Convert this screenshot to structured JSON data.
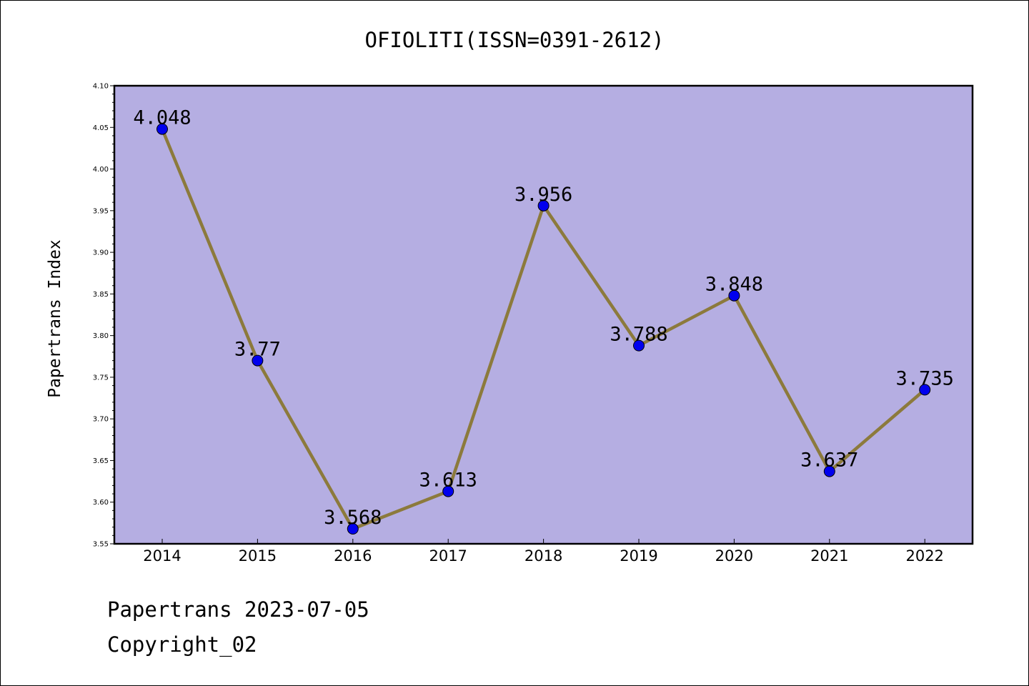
{
  "chart_data": {
    "type": "line",
    "title": "OFIOLITI(ISSN=0391-2612)",
    "ylabel": "Papertrans Index",
    "xlabel": "",
    "categories": [
      "2014",
      "2015",
      "2016",
      "2017",
      "2018",
      "2019",
      "2020",
      "2021",
      "2022"
    ],
    "series": [
      {
        "values": [
          4.048,
          3.77,
          3.568,
          3.613,
          3.956,
          3.788,
          3.848,
          3.637,
          3.735
        ],
        "labels": [
          "4.048",
          "3.77",
          "3.568",
          "3.613",
          "3.956",
          "3.788",
          "3.848",
          "3.637",
          "3.735"
        ]
      }
    ],
    "ylim": [
      3.55,
      4.1
    ],
    "yticks": [
      "3.55",
      "3.60",
      "3.65",
      "3.70",
      "3.75",
      "3.80",
      "3.85",
      "3.90",
      "3.95",
      "4.00",
      "4.05",
      "4.10"
    ],
    "grid": false,
    "colors": {
      "plot_background": "#b5aee2",
      "line": "#8c7a3c",
      "marker": "#0000ee"
    }
  },
  "footer": {
    "date_line": "Papertrans 2023-07-05",
    "copyright_line": "Copyright_02"
  }
}
